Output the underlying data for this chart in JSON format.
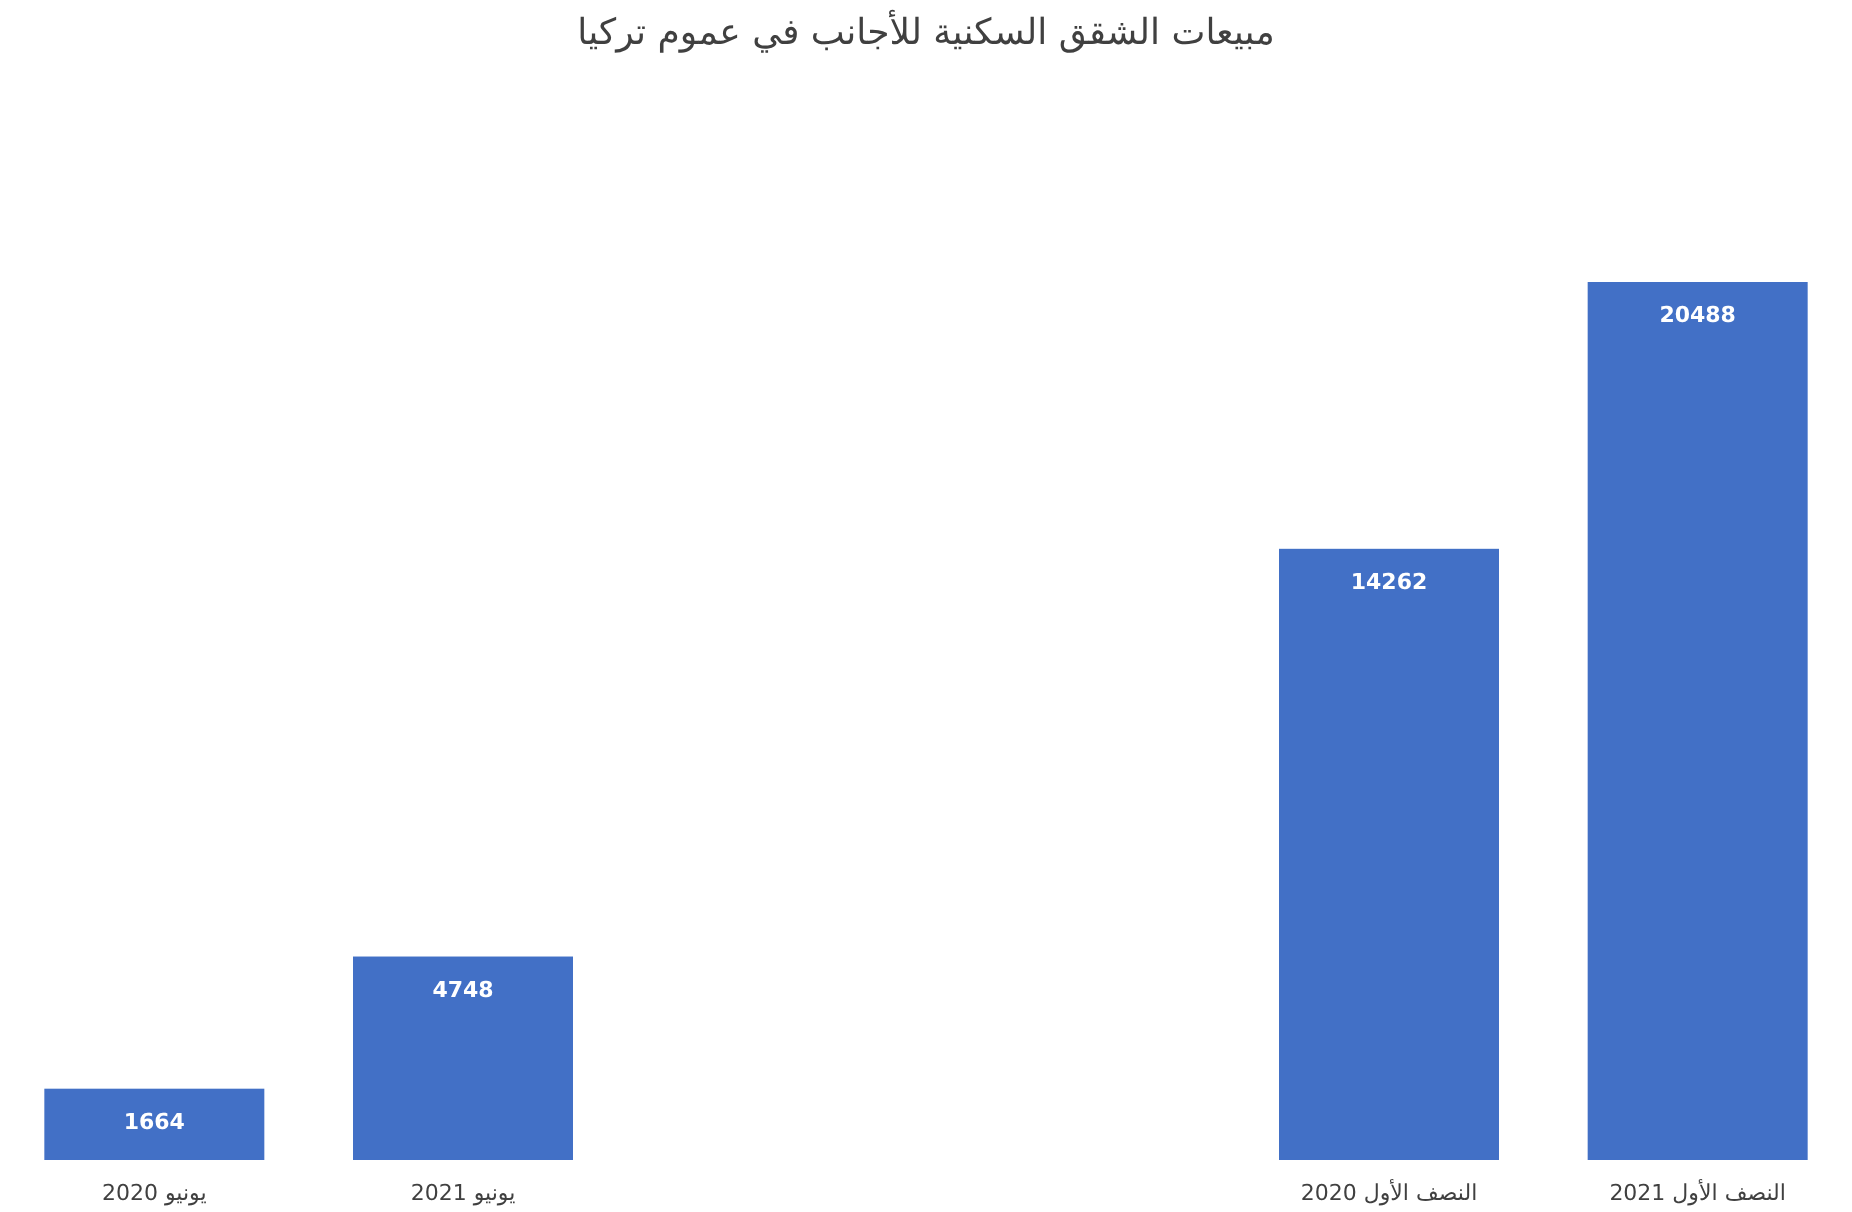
{
  "chart_data": {
    "type": "bar",
    "title": "مبيعات الشقق السكنية للأجانب في عموم تركيا",
    "categories": [
      "يونيو 2020",
      "يونيو 2021",
      null,
      null,
      "النصف الأول 2020",
      "النصف الأول 2021"
    ],
    "values": [
      1664,
      4748,
      null,
      null,
      14262,
      20488
    ],
    "color": "#4270c6",
    "data_labels": true
  }
}
